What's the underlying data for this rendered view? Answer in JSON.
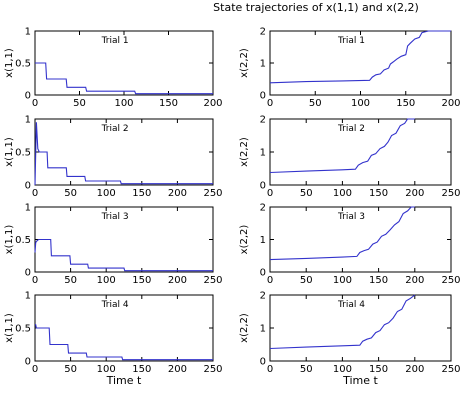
{
  "figure": {
    "title": "State trajectories of x(1,1) and x(2,2)"
  },
  "colors": {
    "series": "#3333cc",
    "axes": "#000000",
    "background": "#ffffff"
  },
  "chart_data": [
    {
      "type": "line",
      "title": "Trial  1",
      "xlabel": "",
      "ylabel": "x(1,1)",
      "xlim": [
        0,
        200
      ],
      "ylim": [
        0,
        1
      ],
      "xticks": [
        "0",
        "50",
        "100",
        "150",
        "200"
      ],
      "yticks": [
        "0",
        "0.5",
        "1"
      ],
      "series": [
        {
          "x": [
            0,
            0.5,
            1,
            12,
            13,
            35,
            36,
            57,
            58,
            112,
            113,
            200
          ],
          "y": [
            0.5,
            0.5,
            0.5,
            0.5,
            0.25,
            0.25,
            0.12,
            0.12,
            0.06,
            0.06,
            0.02,
            0.02
          ]
        }
      ]
    },
    {
      "type": "line",
      "title": "Trial  1",
      "xlabel": "",
      "ylabel": "x(2,2)",
      "xlim": [
        0,
        200
      ],
      "ylim": [
        0,
        2
      ],
      "xticks": [
        "0",
        "50",
        "100",
        "150",
        "200"
      ],
      "yticks": [
        "0",
        "1",
        "2"
      ],
      "series": [
        {
          "x": [
            0,
            40,
            80,
            110,
            113,
            117,
            122,
            126,
            131,
            133,
            136,
            140,
            145,
            150,
            152,
            155,
            160,
            165,
            168,
            175,
            200
          ],
          "y": [
            0.38,
            0.42,
            0.44,
            0.46,
            0.56,
            0.63,
            0.66,
            0.78,
            0.84,
            0.97,
            1.03,
            1.12,
            1.21,
            1.26,
            1.53,
            1.62,
            1.75,
            1.8,
            1.95,
            2.0,
            2.0
          ]
        }
      ]
    },
    {
      "type": "line",
      "title": "Trial  2",
      "xlabel": "",
      "ylabel": "x(1,1)",
      "xlim": [
        0,
        250
      ],
      "ylim": [
        0,
        1
      ],
      "xticks": [
        "0",
        "50",
        "100",
        "150",
        "200",
        "250"
      ],
      "yticks": [
        "0",
        "0.5",
        "1"
      ],
      "series": [
        {
          "x": [
            0,
            2,
            4,
            6,
            17,
            18,
            44,
            45,
            70,
            71,
            120,
            121,
            250
          ],
          "y": [
            0,
            0.95,
            0.55,
            0.5,
            0.5,
            0.26,
            0.26,
            0.13,
            0.13,
            0.06,
            0.06,
            0.02,
            0.02
          ]
        }
      ]
    },
    {
      "type": "line",
      "title": "Trial  2",
      "xlabel": "",
      "ylabel": "x(2,2)",
      "xlim": [
        0,
        250
      ],
      "ylim": [
        0,
        2
      ],
      "xticks": [
        "0",
        "50",
        "100",
        "150",
        "200",
        "250"
      ],
      "yticks": [
        "0",
        "1",
        "2"
      ],
      "series": [
        {
          "x": [
            0,
            50,
            100,
            118,
            122,
            128,
            135,
            140,
            146,
            152,
            158,
            163,
            168,
            174,
            180,
            186,
            190,
            200
          ],
          "y": [
            0.38,
            0.42,
            0.46,
            0.48,
            0.6,
            0.68,
            0.72,
            0.9,
            0.95,
            1.1,
            1.17,
            1.3,
            1.5,
            1.57,
            1.8,
            1.87,
            2.0,
            2.0
          ]
        }
      ]
    },
    {
      "type": "line",
      "title": "Trial  3",
      "xlabel": "",
      "ylabel": "x(1,1)",
      "xlim": [
        0,
        250
      ],
      "ylim": [
        0,
        1
      ],
      "xticks": [
        "0",
        "50",
        "100",
        "150",
        "200",
        "250"
      ],
      "yticks": [
        "0",
        "0.5",
        "1"
      ],
      "series": [
        {
          "x": [
            0,
            1,
            2,
            3,
            5,
            22,
            23,
            49,
            50,
            74,
            75,
            125,
            126,
            200,
            250
          ],
          "y": [
            0.3,
            0.45,
            0.47,
            0.48,
            0.5,
            0.5,
            0.25,
            0.25,
            0.12,
            0.12,
            0.06,
            0.06,
            0.02,
            0.02,
            0.02
          ]
        }
      ]
    },
    {
      "type": "line",
      "title": "Trial  3",
      "xlabel": "",
      "ylabel": "x(2,2)",
      "xlim": [
        0,
        250
      ],
      "ylim": [
        0,
        2
      ],
      "xticks": [
        "0",
        "50",
        "100",
        "150",
        "200",
        "250"
      ],
      "yticks": [
        "0",
        "1",
        "2"
      ],
      "series": [
        {
          "x": [
            0,
            50,
            100,
            120,
            124,
            130,
            136,
            142,
            148,
            154,
            160,
            166,
            172,
            178,
            184,
            190,
            195,
            200
          ],
          "y": [
            0.38,
            0.42,
            0.46,
            0.48,
            0.6,
            0.66,
            0.7,
            0.86,
            0.92,
            1.1,
            1.16,
            1.3,
            1.45,
            1.55,
            1.8,
            1.88,
            2.0,
            2.0
          ]
        }
      ]
    },
    {
      "type": "line",
      "title": "Trial  4",
      "xlabel": "Time t",
      "ylabel": "x(1,1)",
      "xlim": [
        0,
        250
      ],
      "ylim": [
        0,
        1
      ],
      "xticks": [
        "0",
        "50",
        "100",
        "150",
        "200",
        "250"
      ],
      "yticks": [
        "0",
        "0.5",
        "1"
      ],
      "series": [
        {
          "x": [
            0,
            1,
            2,
            3,
            20,
            21,
            46,
            47,
            72,
            73,
            122,
            123,
            250
          ],
          "y": [
            0.55,
            0.55,
            0.5,
            0.5,
            0.5,
            0.25,
            0.25,
            0.12,
            0.12,
            0.06,
            0.06,
            0.02,
            0.02
          ]
        }
      ]
    },
    {
      "type": "line",
      "title": "Trial  4",
      "xlabel": "Time t",
      "ylabel": "x(2,2)",
      "xlim": [
        0,
        250
      ],
      "ylim": [
        0,
        2
      ],
      "xticks": [
        "0",
        "50",
        "100",
        "150",
        "200",
        "250"
      ],
      "yticks": [
        "0",
        "1",
        "2"
      ],
      "series": [
        {
          "x": [
            0,
            50,
            100,
            124,
            128,
            134,
            140,
            146,
            152,
            158,
            164,
            170,
            176,
            182,
            188,
            194,
            200
          ],
          "y": [
            0.38,
            0.42,
            0.46,
            0.48,
            0.6,
            0.66,
            0.7,
            0.86,
            0.92,
            1.1,
            1.16,
            1.3,
            1.5,
            1.57,
            1.82,
            1.9,
            2.0
          ]
        }
      ]
    }
  ]
}
